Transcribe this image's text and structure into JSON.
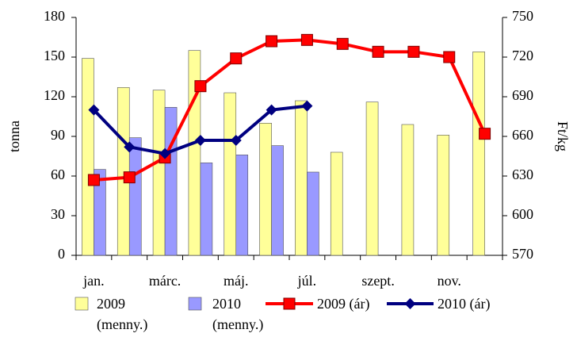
{
  "chart_data": {
    "type": "bar_line",
    "categories": [
      "jan.",
      null,
      "márc.",
      null,
      "máj.",
      null,
      "júl.",
      null,
      "szept.",
      null,
      "nov.",
      null
    ],
    "ylabel": "tonna",
    "y2label": "Ft/kg",
    "ylim": [
      0,
      180
    ],
    "yticks": [
      0,
      30,
      60,
      90,
      120,
      150,
      180
    ],
    "y2lim": [
      570,
      750
    ],
    "y2ticks": [
      570,
      600,
      630,
      660,
      690,
      720,
      750
    ],
    "series": [
      {
        "name": "2009 (menny.)",
        "type": "bar",
        "color": "#ffff99",
        "values": [
          149,
          127,
          125,
          155,
          123,
          100,
          117,
          78,
          116,
          99,
          91,
          154
        ]
      },
      {
        "name": "2010 (menny.)",
        "type": "bar",
        "color": "#9999ff",
        "values": [
          65,
          89,
          112,
          70,
          76,
          83,
          63,
          null,
          null,
          null,
          null,
          null
        ]
      },
      {
        "name": "2009 (ár)",
        "type": "line",
        "axis": "y2",
        "marker": "square",
        "color": "#ff0000",
        "values": [
          627,
          629,
          644,
          698,
          719,
          732,
          733,
          730,
          724,
          724,
          720,
          662
        ]
      },
      {
        "name": "2010 (ár)",
        "type": "line",
        "axis": "y2",
        "marker": "diamond",
        "color": "#000080",
        "values": [
          680,
          652,
          647,
          657,
          657,
          680,
          683,
          null,
          null,
          null,
          null,
          null
        ]
      }
    ]
  }
}
